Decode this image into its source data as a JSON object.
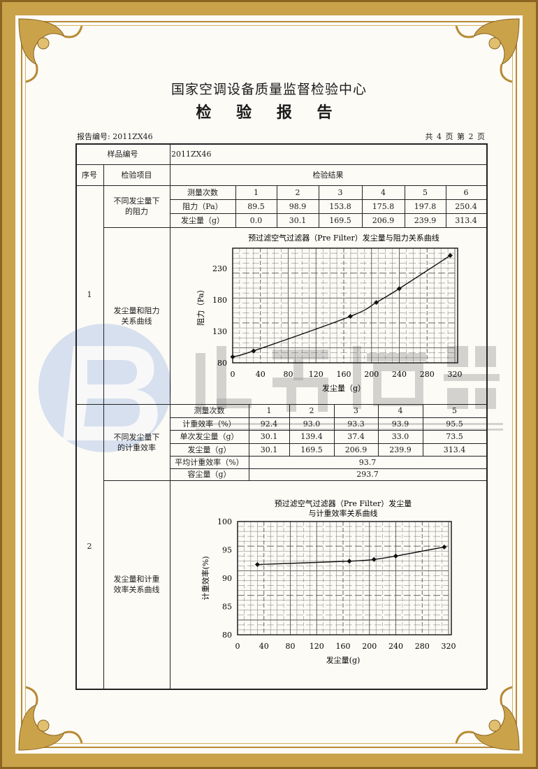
{
  "header": {
    "org_title": "国家空调设备质量监督检验中心",
    "doc_title": "检 验 报 告",
    "report_no": "报告编号: 2011ZX46",
    "page_info": "共 4 页 第 2 页"
  },
  "table": {
    "sample_label": "样品编号",
    "sample_value": "2011ZX46",
    "col_seq": "序号",
    "col_item": "检验项目",
    "col_result": "检验结果",
    "section1": {
      "seq": "1",
      "item_a": "不同发尘量下的阻力",
      "item_b": "发尘量和阻力关系曲线",
      "rows": [
        {
          "label": "测量次数",
          "values": [
            "1",
            "2",
            "3",
            "4",
            "5",
            "6"
          ]
        },
        {
          "label": "阻力（Pa）",
          "values": [
            "89.5",
            "98.9",
            "153.8",
            "175.8",
            "197.8",
            "250.4"
          ]
        },
        {
          "label": "发尘量（g）",
          "values": [
            "0.0",
            "30.1",
            "169.5",
            "206.9",
            "239.9",
            "313.4"
          ]
        }
      ]
    },
    "section2": {
      "seq": "2",
      "item_a": "不同发尘量下的计重效率",
      "item_b": "发尘量和计重效率关系曲线",
      "rows": [
        {
          "label": "测量次数",
          "values": [
            "1",
            "2",
            "3",
            "4",
            "5"
          ]
        },
        {
          "label": "计重效率（%）",
          "values": [
            "92.4",
            "93.0",
            "93.3",
            "93.9",
            "95.5"
          ]
        },
        {
          "label": "单次发尘量（g）",
          "values": [
            "30.1",
            "139.4",
            "37.4",
            "33.0",
            "73.5"
          ]
        },
        {
          "label": "发尘量（g）",
          "values": [
            "30.1",
            "169.5",
            "206.9",
            "239.9",
            "313.4"
          ]
        }
      ],
      "avg_label": "平均计重效率（%）",
      "avg_value": "93.7",
      "capacity_label": "容尘量（g）",
      "capacity_value": "293.7"
    }
  },
  "watermark": {
    "brand_cn": "北方滤器",
    "brand_en": "XINXIANG BEIFANG FILTER CO.,LTD.",
    "color": "#3a6fc0"
  },
  "chart_data": [
    {
      "type": "line",
      "title": "预过滤空气过滤器（Pre Filter）发尘量与阻力关系曲线",
      "xlabel": "发尘量（g）",
      "ylabel": "阻力（Pa）",
      "x": [
        0.0,
        30.1,
        169.5,
        206.9,
        239.9,
        313.4
      ],
      "y": [
        89.5,
        98.9,
        153.8,
        175.8,
        197.8,
        250.4
      ],
      "xticks": [
        "0",
        "40",
        "80",
        "120",
        "160",
        "200",
        "240",
        "280",
        "320"
      ],
      "yticks": [
        "80",
        "130",
        "180",
        "230"
      ],
      "xlim": [
        0,
        320
      ],
      "ylim": [
        80,
        262
      ],
      "grid": true
    },
    {
      "type": "line",
      "title": "预过滤空气过滤器（Pre Filter）发尘量",
      "title2": "与计重效率关系曲线",
      "xlabel": "发尘量(g)",
      "ylabel": "计重效率(%)",
      "x": [
        30.1,
        169.5,
        206.9,
        239.9,
        313.4
      ],
      "y": [
        92.4,
        93.0,
        93.3,
        93.9,
        95.5
      ],
      "xticks": [
        "0",
        "40",
        "80",
        "120",
        "160",
        "200",
        "240",
        "280",
        "320"
      ],
      "yticks": [
        "80",
        "85",
        "90",
        "95",
        "100"
      ],
      "xlim": [
        0,
        320
      ],
      "ylim": [
        80,
        100
      ],
      "grid": true
    }
  ]
}
